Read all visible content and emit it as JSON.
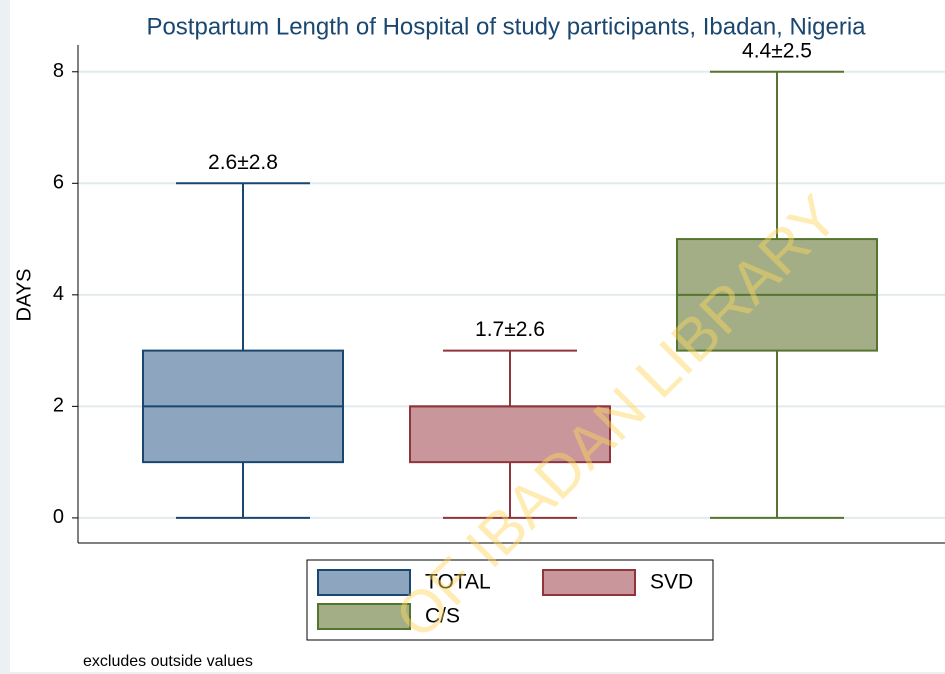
{
  "chart_data": {
    "type": "box",
    "title": "Postpartum Length of  Hospital of study participants, Ibadan, Nigeria",
    "y_label": "DAYS",
    "note": "excludes outside values",
    "watermark": "OF IBADAN LIBRARY",
    "ylim": [
      -0.45,
      8.48
    ],
    "yticks": [
      0,
      2,
      4,
      6,
      8
    ],
    "grid": true,
    "legend": "bottom",
    "series": [
      {
        "name": "TOTAL",
        "fill": "#8ea5bf",
        "color": "#1a476f",
        "min": 0,
        "q1": 1,
        "median": 2,
        "q3": 3,
        "max": 6,
        "label": "2.6±2.8"
      },
      {
        "name": "SVD",
        "fill": "#c9979b",
        "color": "#90353b",
        "min": 0,
        "q1": 1,
        "median": 2,
        "q3": 2,
        "max": 3,
        "label": "1.7±2.6"
      },
      {
        "name": "C/S",
        "fill": "#a3ae86",
        "color": "#55752f",
        "min": 0,
        "q1": 3,
        "median": 4,
        "q3": 5,
        "max": 8,
        "label": "4.4±2.5"
      }
    ]
  }
}
